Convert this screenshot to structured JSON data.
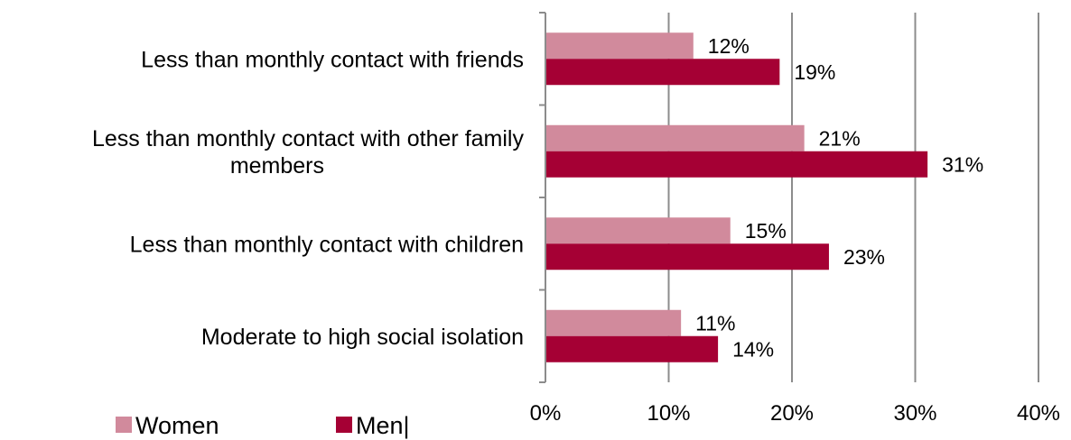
{
  "chart_data": {
    "type": "bar",
    "orientation": "horizontal",
    "categories": [
      [
        "Less than monthly contact with friends"
      ],
      [
        "Less than monthly contact with other family",
        "members"
      ],
      [
        "Less than monthly contact with children"
      ],
      [
        "Moderate to high social isolation"
      ]
    ],
    "series": [
      {
        "name": "Women",
        "values": [
          12,
          21,
          15,
          11
        ],
        "labels": [
          "12%",
          "21%",
          "15%",
          "11%"
        ],
        "color": "#d18a9c"
      },
      {
        "name": "Men",
        "values": [
          19,
          31,
          23,
          14
        ],
        "labels": [
          "19%",
          "31%",
          "23%",
          "14%"
        ],
        "color": "#a50034"
      }
    ],
    "xlim": [
      0,
      40
    ],
    "xticks": [
      0,
      10,
      20,
      30,
      40
    ],
    "xtick_labels": [
      "0%",
      "10%",
      "20%",
      "30%",
      "40%"
    ],
    "grid": "vertical",
    "grid_color": "#8c8c8c",
    "legend_position": "bottom-left",
    "legend_entries": [
      "Women",
      "Men|"
    ],
    "title": "",
    "xlabel": "",
    "ylabel": ""
  }
}
